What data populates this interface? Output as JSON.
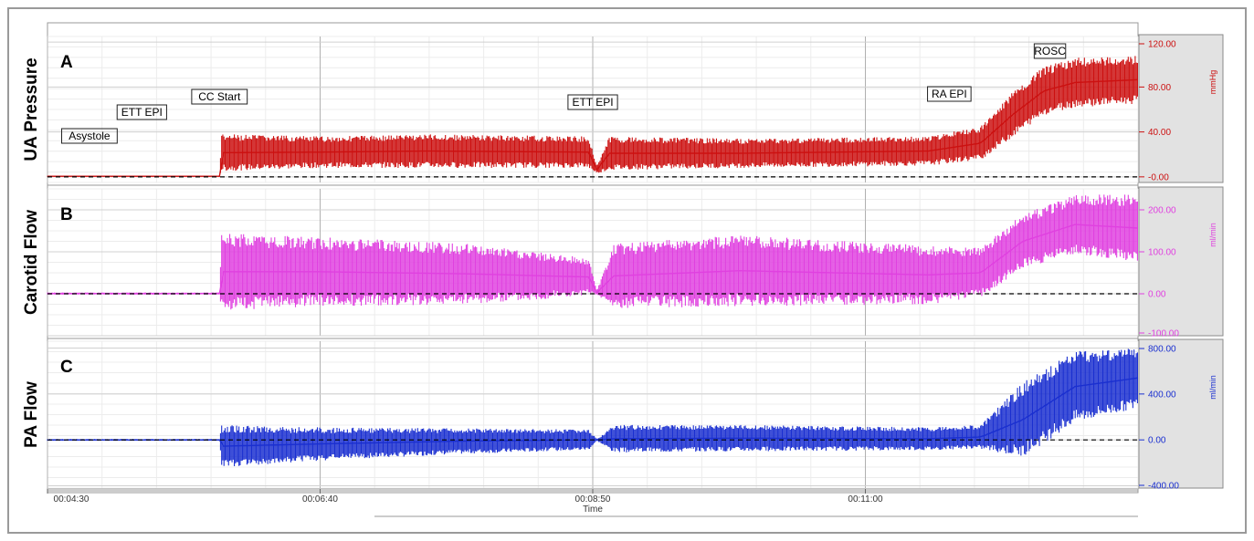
{
  "chart_data": {
    "type": "line",
    "title": "",
    "xlabel": "Time",
    "x_ticks": [
      "00:04:30",
      "00:06:40",
      "00:08:50",
      "00:11:00"
    ],
    "x_range_s": [
      270,
      790
    ],
    "grid": true,
    "events": [
      {
        "label": "Asystole",
        "t": 290
      },
      {
        "label": "ETT EPI",
        "t": 315
      },
      {
        "label": "CC Start",
        "t": 352
      },
      {
        "label": "ETT EPI",
        "t": 530
      },
      {
        "label": "RA EPI",
        "t": 700
      },
      {
        "label": "ROSC",
        "t": 748
      }
    ],
    "panels": [
      {
        "letter": "A",
        "row_label": "UA Pressure",
        "unit": "mmHg",
        "color": "#cc1010",
        "tick_labels": [
          "120.00",
          "80.00",
          "40.00",
          "-0.00"
        ],
        "tick_values": [
          120,
          80,
          40,
          0
        ],
        "ylim": [
          -5,
          125
        ],
        "series": [
          {
            "t": 270,
            "lo": 0,
            "hi": 1
          },
          {
            "t": 352,
            "lo": 0,
            "hi": 1
          },
          {
            "t": 353,
            "lo": 5,
            "hi": 38
          },
          {
            "t": 400,
            "lo": 8,
            "hi": 36
          },
          {
            "t": 450,
            "lo": 8,
            "hi": 38
          },
          {
            "t": 528,
            "lo": 8,
            "hi": 36
          },
          {
            "t": 532,
            "lo": 3,
            "hi": 10
          },
          {
            "t": 538,
            "lo": 6,
            "hi": 36
          },
          {
            "t": 600,
            "lo": 8,
            "hi": 34
          },
          {
            "t": 690,
            "lo": 10,
            "hi": 36
          },
          {
            "t": 715,
            "lo": 15,
            "hi": 45
          },
          {
            "t": 730,
            "lo": 35,
            "hi": 75
          },
          {
            "t": 745,
            "lo": 55,
            "hi": 98
          },
          {
            "t": 760,
            "lo": 62,
            "hi": 106
          },
          {
            "t": 790,
            "lo": 65,
            "hi": 108
          }
        ]
      },
      {
        "letter": "B",
        "row_label": "Carotid Flow",
        "unit": "ml/min",
        "color": "#e040e0",
        "tick_labels": [
          "200.00",
          "100.00",
          "0.00",
          "-100.00"
        ],
        "tick_values": [
          200,
          100,
          0,
          -100
        ],
        "ylim": [
          -100,
          250
        ],
        "series": [
          {
            "t": 270,
            "lo": -2,
            "hi": 3
          },
          {
            "t": 352,
            "lo": -2,
            "hi": 3
          },
          {
            "t": 353,
            "lo": -40,
            "hi": 145
          },
          {
            "t": 400,
            "lo": -30,
            "hi": 135
          },
          {
            "t": 470,
            "lo": -25,
            "hi": 120
          },
          {
            "t": 528,
            "lo": -5,
            "hi": 85
          },
          {
            "t": 532,
            "lo": -2,
            "hi": 8
          },
          {
            "t": 540,
            "lo": -35,
            "hi": 120
          },
          {
            "t": 600,
            "lo": -30,
            "hi": 140
          },
          {
            "t": 690,
            "lo": -25,
            "hi": 115
          },
          {
            "t": 715,
            "lo": -10,
            "hi": 110
          },
          {
            "t": 735,
            "lo": 60,
            "hi": 190
          },
          {
            "t": 760,
            "lo": 95,
            "hi": 235
          },
          {
            "t": 790,
            "lo": 75,
            "hi": 238
          }
        ]
      },
      {
        "letter": "C",
        "row_label": "PA Flow",
        "unit": "ml/min",
        "color": "#1a2fd0",
        "tick_labels": [
          "800.00",
          "400.00",
          "0.00",
          "-400.00"
        ],
        "tick_values": [
          800,
          400,
          0,
          -400
        ],
        "ylim": [
          -420,
          860
        ],
        "series": [
          {
            "t": 270,
            "lo": -8,
            "hi": 8
          },
          {
            "t": 352,
            "lo": -8,
            "hi": 8
          },
          {
            "t": 353,
            "lo": -240,
            "hi": 130
          },
          {
            "t": 400,
            "lo": -180,
            "hi": 110
          },
          {
            "t": 470,
            "lo": -120,
            "hi": 100
          },
          {
            "t": 528,
            "lo": -90,
            "hi": 90
          },
          {
            "t": 532,
            "lo": -8,
            "hi": 8
          },
          {
            "t": 540,
            "lo": -110,
            "hi": 130
          },
          {
            "t": 600,
            "lo": -100,
            "hi": 130
          },
          {
            "t": 690,
            "lo": -90,
            "hi": 110
          },
          {
            "t": 715,
            "lo": -80,
            "hi": 130
          },
          {
            "t": 735,
            "lo": -150,
            "hi": 500
          },
          {
            "t": 760,
            "lo": 150,
            "hi": 780
          },
          {
            "t": 790,
            "lo": 280,
            "hi": 800
          }
        ]
      }
    ]
  }
}
